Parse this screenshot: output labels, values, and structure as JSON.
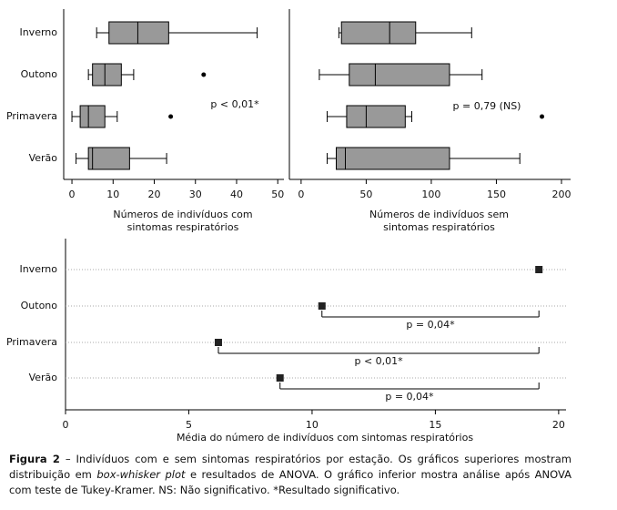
{
  "chart_data": [
    {
      "type": "box",
      "categories": [
        "Inverno",
        "Outono",
        "Primavera",
        "Verão"
      ],
      "boxes": [
        {
          "whislo": 6,
          "q1": 9,
          "med": 16,
          "q3": 23.5,
          "whishi": 45
        },
        {
          "whislo": 4,
          "q1": 5,
          "med": 8,
          "q3": 12,
          "whishi": 15,
          "fliers": [
            32
          ]
        },
        {
          "whislo": 0,
          "q1": 2,
          "med": 4,
          "q3": 8,
          "whishi": 11,
          "fliers": [
            24
          ]
        },
        {
          "whislo": 1,
          "q1": 4,
          "med": 5,
          "q3": 14,
          "whishi": 23
        }
      ],
      "xlim": [
        -2,
        51.5
      ],
      "xticks": [
        0,
        10,
        20,
        30,
        40,
        50
      ],
      "x_label": [
        "Números de indivíduos com",
        "sintomas respiratórios"
      ],
      "annotation": "p < 0,01*",
      "color": "#999999"
    },
    {
      "type": "box",
      "boxes": [
        {
          "whislo": 29,
          "q1": 31,
          "med": 68,
          "q3": 88,
          "whishi": 131
        },
        {
          "whislo": 14,
          "q1": 37,
          "med": 57,
          "q3": 114,
          "whishi": 139
        },
        {
          "whislo": 20,
          "q1": 35,
          "med": 50,
          "q3": 80,
          "whishi": 85,
          "fliers": [
            185
          ]
        },
        {
          "whislo": 20,
          "q1": 27,
          "med": 34,
          "q3": 114,
          "whishi": 168
        }
      ],
      "xlim": [
        -9,
        207
      ],
      "xticks": [
        0,
        50,
        100,
        150,
        200
      ],
      "x_label": [
        "Números de indivíduos sem",
        "sintomas respiratórios"
      ],
      "annotation": "p = 0,79 (NS)",
      "color": "#999999"
    },
    {
      "type": "dot",
      "categories": [
        "Inverno",
        "Outono",
        "Primavera",
        "Verão"
      ],
      "values": [
        19.2,
        10.4,
        6.2,
        8.7
      ],
      "xlim": [
        0,
        20.3
      ],
      "xticks": [
        0,
        5,
        10,
        15,
        20
      ],
      "x_label": "Média do número de indivíduos com sintomas respiratórios",
      "grid": true,
      "color": "#222222",
      "comparisons": [
        {
          "pair": [
            "Outono",
            "Inverno"
          ],
          "label": "p = 0,04*"
        },
        {
          "pair": [
            "Primavera",
            "Inverno"
          ],
          "label": "p < 0,01*"
        },
        {
          "pair": [
            "Verão",
            "Inverno"
          ],
          "label": "p = 0,04*"
        }
      ]
    }
  ],
  "caption": {
    "label": "Figura 2",
    "text": "– Indivíduos com e sem sintomas respiratórios por estação. Os gráficos superiores mostram distribuição em",
    "emphasis": "box-whisker plot",
    "text_end": "e resultados de ANOVA. O gráfico inferior mostra análise após ANOVA com teste de Tukey-Kramer. NS: Não significativo. *Resultado significativo."
  }
}
